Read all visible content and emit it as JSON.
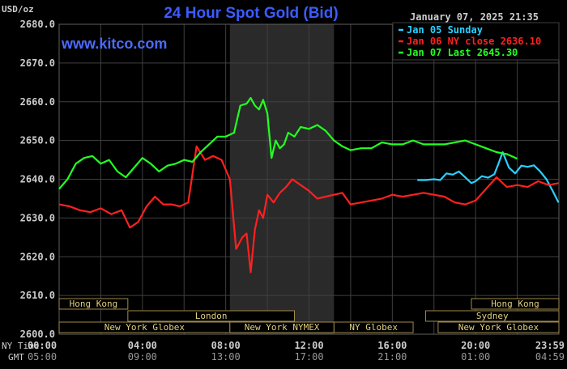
{
  "chart_data": {
    "type": "line",
    "title": "24 Hour Spot Gold (Bid)",
    "unit_label": "USD/oz",
    "watermark": "www.kitco.com",
    "timestamp": "January 07, 2025 21:35",
    "y_ticks": [
      "2680.0",
      "2670.0",
      "2660.0",
      "2650.0",
      "2640.0",
      "2630.0",
      "2620.0",
      "2610.0",
      "2600.0"
    ],
    "ylim": [
      2600,
      2680
    ],
    "xlim": [
      0,
      24
    ],
    "row_labels": {
      "ny": "NY Time",
      "gmt": "GMT"
    },
    "x_ticks_ny": [
      "00:00",
      "04:00",
      "08:00",
      "12:00",
      "16:00",
      "20:00",
      "23:59"
    ],
    "x_ticks_gmt": [
      "05:00",
      "09:00",
      "13:00",
      "17:00",
      "21:00",
      "01:00",
      "04:59"
    ],
    "x_tick_hours": [
      0,
      4,
      8,
      12,
      16,
      20,
      23.98
    ],
    "shaded_hours": [
      8.2,
      13.2
    ],
    "colors": {
      "background": "#000000",
      "grid": "#404040",
      "shade": "#2a2a2a",
      "title": "#3b5cff",
      "watermark": "#4a6cff",
      "axis_text": "#cccccc",
      "market_border": "#a08a4a",
      "market_text": "#e0d080"
    },
    "legend": [
      {
        "name": "Jan 05 Sunday",
        "color": "#2ad0ff"
      },
      {
        "name": "Jan 06 NY close 2636.10",
        "color": "#ff2020"
      },
      {
        "name": "Jan 07 Last 2645.30",
        "color": "#22ff22"
      }
    ],
    "markets": [
      {
        "label": "Hong Kong",
        "start": 0,
        "end": 3.3,
        "row": 0
      },
      {
        "label": "Hong Kong",
        "start": 19.8,
        "end": 24,
        "row": 0
      },
      {
        "label": "London",
        "start": 3.3,
        "end": 11.3,
        "row": 1
      },
      {
        "label": "Sydney",
        "start": 17.6,
        "end": 24,
        "row": 1
      },
      {
        "label": "New York Globex",
        "start": 0,
        "end": 8.2,
        "row": 2
      },
      {
        "label": "New York NYMEX",
        "start": 8.2,
        "end": 13.2,
        "row": 2
      },
      {
        "label": "NY Globex",
        "start": 13.2,
        "end": 17.0,
        "row": 2
      },
      {
        "label": "New York Globex",
        "start": 18.2,
        "end": 24,
        "row": 2
      }
    ],
    "series": [
      {
        "name": "Jan 05 Sunday",
        "color": "#2ad0ff",
        "x": [
          17.2,
          17.6,
          18.0,
          18.3,
          18.6,
          18.9,
          19.2,
          19.5,
          19.8,
          20.0,
          20.3,
          20.6,
          20.9,
          21.1,
          21.3,
          21.6,
          21.9,
          22.2,
          22.5,
          22.8,
          23.1,
          23.4,
          23.7,
          23.98
        ],
        "y": [
          2639.8,
          2639.8,
          2640.0,
          2639.8,
          2641.5,
          2641.2,
          2642.0,
          2640.5,
          2639.0,
          2639.5,
          2640.8,
          2640.4,
          2641.3,
          2644.0,
          2647.0,
          2643.0,
          2641.5,
          2643.5,
          2643.2,
          2643.6,
          2642.0,
          2640.0,
          2637.0,
          2634.0
        ]
      },
      {
        "name": "Jan 06 NY close 2636.10",
        "color": "#ff2020",
        "x": [
          0,
          0.5,
          1.0,
          1.5,
          2.0,
          2.5,
          3.0,
          3.4,
          3.8,
          4.2,
          4.6,
          5.0,
          5.4,
          5.8,
          6.2,
          6.6,
          7.0,
          7.4,
          7.8,
          8.2,
          8.5,
          8.8,
          9.0,
          9.2,
          9.4,
          9.6,
          9.8,
          10.0,
          10.3,
          10.6,
          10.9,
          11.2,
          11.6,
          12.0,
          12.4,
          12.8,
          13.2,
          13.6,
          14.0,
          14.5,
          15.0,
          15.5,
          16.0,
          16.5,
          17.0,
          17.5,
          18.0,
          18.5,
          19.0,
          19.5,
          20.0,
          20.5,
          21.0,
          21.5,
          22.0,
          22.5,
          23.0,
          23.5,
          23.98
        ],
        "y": [
          2633.5,
          2633.0,
          2632.0,
          2631.5,
          2632.5,
          2631.0,
          2632.0,
          2627.5,
          2629.0,
          2633.0,
          2635.5,
          2633.5,
          2633.5,
          2633.0,
          2634.0,
          2648.5,
          2645.0,
          2646.0,
          2645.0,
          2640.0,
          2622.0,
          2625.0,
          2626.0,
          2616.0,
          2627.0,
          2632.0,
          2630.0,
          2636.0,
          2634.0,
          2636.5,
          2638.0,
          2640.0,
          2638.5,
          2637.0,
          2635.0,
          2635.5,
          2636.0,
          2636.5,
          2633.5,
          2634.0,
          2634.5,
          2635.0,
          2636.0,
          2635.5,
          2636.0,
          2636.5,
          2636.0,
          2635.5,
          2634.0,
          2633.5,
          2634.5,
          2637.5,
          2640.5,
          2638.0,
          2638.5,
          2638.0,
          2639.5,
          2638.5,
          2639.0
        ]
      },
      {
        "name": "Jan 07 Last 2645.30",
        "color": "#22ff22",
        "x": [
          0,
          0.4,
          0.8,
          1.2,
          1.6,
          2.0,
          2.4,
          2.8,
          3.2,
          3.6,
          4.0,
          4.4,
          4.8,
          5.2,
          5.6,
          6.0,
          6.4,
          6.8,
          7.2,
          7.6,
          8.0,
          8.4,
          8.7,
          9.0,
          9.2,
          9.4,
          9.6,
          9.8,
          10.0,
          10.2,
          10.4,
          10.6,
          10.8,
          11.0,
          11.3,
          11.6,
          12.0,
          12.4,
          12.8,
          13.2,
          13.6,
          14.0,
          14.5,
          15.0,
          15.5,
          16.0,
          16.5,
          17.0,
          17.5,
          18.0,
          18.5,
          19.0,
          19.5,
          20.0,
          20.5,
          21.0,
          21.5,
          22.0
        ],
        "y": [
          2637.5,
          2640.0,
          2644.0,
          2645.5,
          2646.0,
          2644.0,
          2645.0,
          2642.0,
          2640.5,
          2643.0,
          2645.5,
          2644.0,
          2642.0,
          2643.5,
          2644.0,
          2645.0,
          2644.5,
          2647.0,
          2649.0,
          2651.0,
          2651.0,
          2652.0,
          2659.0,
          2659.5,
          2661.0,
          2659.0,
          2658.0,
          2660.5,
          2657.0,
          2645.5,
          2650.0,
          2648.0,
          2649.0,
          2652.0,
          2651.0,
          2653.5,
          2653.0,
          2654.0,
          2652.5,
          2650.0,
          2648.5,
          2647.5,
          2648.0,
          2648.0,
          2649.5,
          2649.0,
          2649.0,
          2650.0,
          2649.0,
          2649.0,
          2649.0,
          2649.5,
          2650.0,
          2649.0,
          2648.0,
          2647.0,
          2646.5,
          2645.3
        ]
      }
    ]
  }
}
